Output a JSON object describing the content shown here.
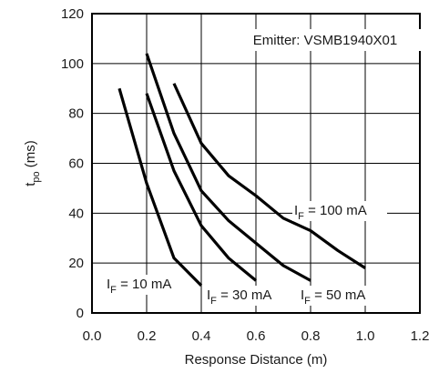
{
  "chart_data": {
    "type": "line",
    "xlabel": "Response Distance (m)",
    "ylabel": {
      "main": "t",
      "sub": "po",
      "unit": " (ms)"
    },
    "xlim": [
      0,
      1.2
    ],
    "ylim": [
      0,
      120
    ],
    "x_ticks": [
      "0.0",
      "0.2",
      "0.4",
      "0.6",
      "0.8",
      "1.0",
      "1.2"
    ],
    "y_ticks": [
      "0",
      "20",
      "40",
      "60",
      "80",
      "100",
      "120"
    ],
    "grid": true,
    "annotation": "Emitter: VSMB1940X01",
    "series": [
      {
        "label": {
          "main": "I",
          "sub": "F",
          "rest": " = 10 mA"
        },
        "x": [
          0.1,
          0.2,
          0.3,
          0.4
        ],
        "y": [
          90,
          52,
          22,
          11
        ]
      },
      {
        "label": {
          "main": "I",
          "sub": "F",
          "rest": " = 30 mA"
        },
        "x": [
          0.2,
          0.3,
          0.4,
          0.5,
          0.6
        ],
        "y": [
          88,
          57,
          35,
          22,
          13
        ]
      },
      {
        "label": {
          "main": "I",
          "sub": "F",
          "rest": " = 50 mA"
        },
        "x": [
          0.2,
          0.3,
          0.4,
          0.5,
          0.6,
          0.7,
          0.8
        ],
        "y": [
          104,
          72,
          49,
          37,
          28,
          19,
          13
        ]
      },
      {
        "label": {
          "main": "I",
          "sub": "F",
          "rest": " = 100 mA"
        },
        "x": [
          0.3,
          0.4,
          0.5,
          0.6,
          0.7,
          0.8,
          0.9,
          1.0
        ],
        "y": [
          92,
          68,
          55,
          47,
          38,
          33,
          25,
          18
        ]
      }
    ]
  }
}
